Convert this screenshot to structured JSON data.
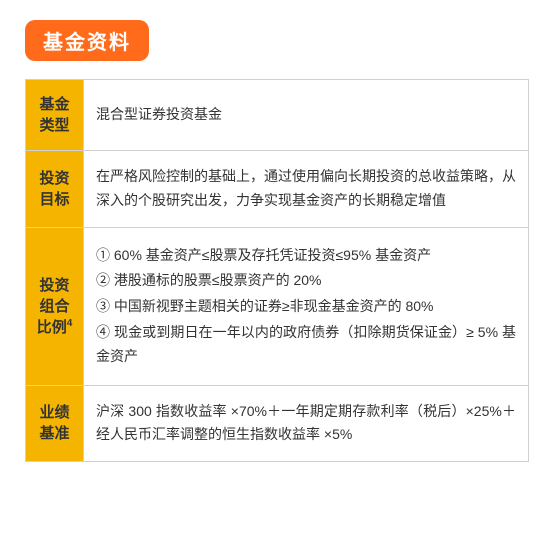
{
  "title": "基金资料",
  "colors": {
    "badge_bg": "#ff6b1a",
    "badge_text": "#ffffff",
    "label_bg": "#f5b400",
    "border": "#d0d0d0",
    "text": "#333333",
    "content_bg": "#ffffff"
  },
  "typography": {
    "title_fontsize": 20,
    "label_fontsize": 15,
    "content_fontsize": 14,
    "line_height": 1.7
  },
  "rows": [
    {
      "label": "基金类型",
      "content": "混合型证券投资基金"
    },
    {
      "label": "投资目标",
      "content": "在严格风险控制的基础上，通过使用偏向长期投资的总收益策略，从深入的个股研究出发，力争实现基金资产的长期稳定增值"
    },
    {
      "label": "投资组合比例",
      "label_sup": "4",
      "items": [
        "① 60% 基金资产≤股票及存托凭证投资≤95% 基金资产",
        "② 港股通标的股票≤股票资产的 20%",
        "③ 中国新视野主题相关的证券≥非现金基金资产的 80%",
        "④ 现金或到期日在一年以内的政府债券（扣除期货保证金）≥ 5% 基金资产"
      ]
    },
    {
      "label": "业绩基准",
      "content": "沪深 300 指数收益率 ×70%＋一年期定期存款利率（税后）×25%＋ 经人民币汇率调整的恒生指数收益率 ×5%"
    }
  ],
  "layout": {
    "label_col_width": 58,
    "badge_radius": 10,
    "cell_padding": 14
  }
}
